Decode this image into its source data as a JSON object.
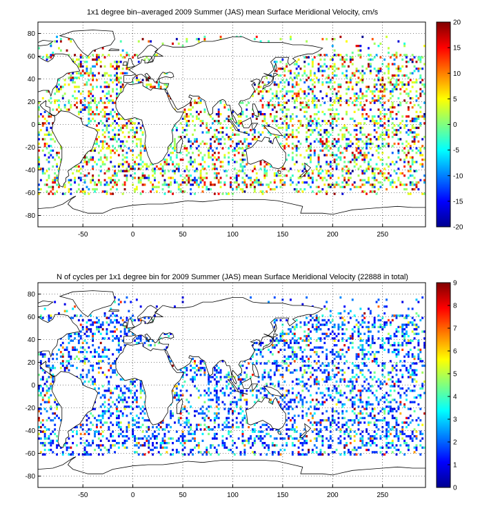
{
  "figure": {
    "colors": {
      "land_fill": "#ffffff",
      "coast": "#000000",
      "grid": "#000000",
      "ocean_bg": "#ffffff"
    }
  },
  "chart_data": [
    {
      "type": "heatmap",
      "title": "1x1 degree bin–averaged 2009 Summer (JAS) mean Surface Meridional Velocity, cm/s",
      "xlabel": "",
      "ylabel": "",
      "xlim": [
        -95,
        293
      ],
      "ylim": [
        -90,
        90
      ],
      "x_ticks": [
        -50,
        0,
        50,
        100,
        150,
        200,
        250
      ],
      "y_ticks": [
        80,
        60,
        40,
        20,
        0,
        -20,
        -40,
        -60,
        -80
      ],
      "grid": true,
      "colorbar": {
        "min": -20,
        "max": 20,
        "ticks": [
          20,
          15,
          10,
          5,
          0,
          -5,
          -10,
          -15,
          -20
        ],
        "colormap": "jet",
        "placement": "right"
      },
      "value_range": [
        -20,
        20
      ],
      "seed": 7
    },
    {
      "type": "heatmap",
      "title": "N of cycles per 1x1 degree bin for 2009 Summer (JAS) mean Surface Meridional Velocity (22888 in total)",
      "xlabel": "",
      "ylabel": "",
      "xlim": [
        -95,
        293
      ],
      "ylim": [
        -90,
        90
      ],
      "x_ticks": [
        -50,
        0,
        50,
        100,
        150,
        200,
        250
      ],
      "y_ticks": [
        80,
        60,
        40,
        20,
        0,
        -20,
        -40,
        -60,
        -80
      ],
      "grid": true,
      "colorbar": {
        "min": 0,
        "max": 9,
        "ticks": [
          9,
          8,
          7,
          6,
          5,
          4,
          3,
          2,
          1,
          0
        ],
        "colormap": "jet",
        "placement": "right"
      },
      "value_range": [
        0,
        9
      ],
      "total_count": 22888,
      "seed": 13
    }
  ]
}
